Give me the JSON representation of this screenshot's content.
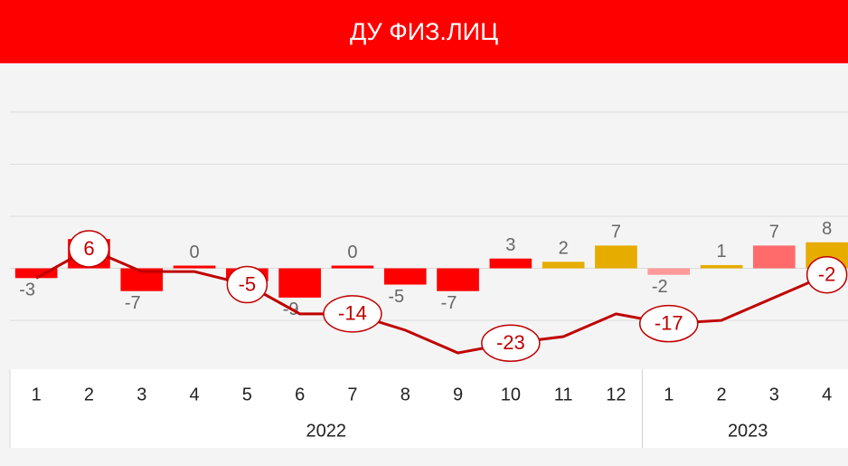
{
  "chart_data": {
    "type": "bar",
    "title": "ДУ ФИЗ.ЛИЦ",
    "categories": [
      "1",
      "2",
      "3",
      "4",
      "5",
      "6",
      "7",
      "8",
      "9",
      "10",
      "11",
      "12",
      "1",
      "2",
      "3",
      "4"
    ],
    "years": [
      "2022",
      "2022",
      "2022",
      "2022",
      "2022",
      "2022",
      "2022",
      "2022",
      "2022",
      "2022",
      "2022",
      "2022",
      "2023",
      "2023",
      "2023",
      "2023"
    ],
    "values": [
      -3,
      9,
      -7,
      0,
      -4,
      -9,
      0,
      -5,
      -7,
      3,
      2,
      7,
      -2,
      1,
      7,
      8
    ],
    "value_labels": [
      "-3",
      null,
      "-7",
      "0",
      "-4",
      "-9",
      "0",
      "-5",
      "-7",
      "3",
      "2",
      "7",
      "-2",
      "1",
      "7",
      "8"
    ],
    "colors": [
      "#ff0000",
      "#ff0000",
      "#ff0000",
      "#ff0000",
      "#ff0000",
      "#ff0000",
      "#ff0000",
      "#ff0000",
      "#ff0000",
      "#ff0000",
      "#e6ac00",
      "#e6ac00",
      "#ff9999",
      "#e6ac00",
      "#ff6b6b",
      "#e6ac00"
    ],
    "line": {
      "type": "line",
      "color": "#c00000",
      "values": [
        -3,
        6,
        -1,
        -1,
        -5,
        -14,
        -14,
        -19,
        -26,
        -23,
        -21,
        -14,
        -17,
        -16,
        -9,
        -2
      ],
      "value_labels": [
        null,
        "6",
        null,
        null,
        "-5",
        null,
        "-14",
        null,
        null,
        "-23",
        null,
        null,
        "-17",
        null,
        null,
        "-2"
      ]
    },
    "ylim": [
      -31,
      63
    ],
    "yticks": [
      -16,
      0,
      16,
      32,
      48
    ],
    "grid": true
  }
}
